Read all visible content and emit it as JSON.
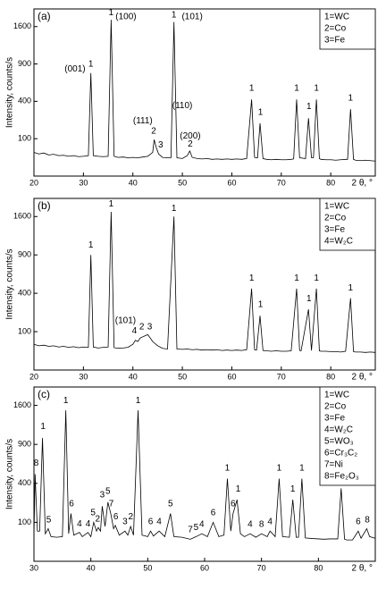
{
  "chart_data": [
    {
      "type": "line",
      "panel_label": "(a)",
      "y_label": "Intensity, counts/s",
      "x_label": "2 θ, °",
      "color": "#000000",
      "yscale": "sqrt",
      "xlim": [
        20,
        89
      ],
      "ylim": [
        0,
        2000
      ],
      "xticks": [
        20,
        30,
        40,
        50,
        60,
        70,
        80
      ],
      "yticks": [
        100,
        400,
        900,
        1600
      ],
      "legend": [
        "1=WC",
        "2=Co",
        "3=Fe"
      ],
      "legend_corner": "top-right",
      "x": [
        20,
        21,
        22,
        23,
        24,
        25,
        26,
        27,
        28,
        29,
        30,
        31,
        31.5,
        32,
        33,
        34,
        35,
        35.6,
        36.2,
        37,
        38,
        39,
        40,
        41,
        42,
        43,
        44,
        44.3,
        44.7,
        45.2,
        46,
        47,
        47.7,
        48.3,
        48.9,
        50,
        51,
        51.5,
        52,
        53,
        54,
        55,
        56,
        57,
        58,
        59,
        60,
        61,
        62,
        63,
        64,
        64.6,
        65.2,
        65.7,
        66.3,
        67,
        68,
        69,
        70,
        71,
        72,
        72.5,
        73.1,
        73.7,
        74.9,
        75.5,
        76.1,
        76.5,
        77.1,
        77.7,
        78,
        79,
        80,
        81,
        82,
        83,
        83.4,
        84,
        84.6,
        85,
        86,
        87,
        88,
        89
      ],
      "values": [
        40,
        35,
        38,
        32,
        34,
        30,
        31,
        28,
        30,
        27,
        28,
        30,
        760,
        30,
        28,
        27,
        28,
        1750,
        28,
        25,
        26,
        24,
        25,
        24,
        26,
        28,
        40,
        95,
        60,
        35,
        25,
        24,
        24,
        1700,
        24,
        22,
        30,
        45,
        25,
        22,
        21,
        22,
        20,
        21,
        20,
        21,
        20,
        21,
        20,
        22,
        420,
        25,
        24,
        200,
        22,
        20,
        19,
        20,
        19,
        19,
        20,
        21,
        420,
        24,
        22,
        240,
        24,
        24,
        420,
        22,
        20,
        19,
        19,
        18,
        19,
        20,
        20,
        320,
        20,
        18,
        17,
        18,
        17,
        16
      ],
      "annotations": [
        {
          "text": "(001)",
          "x": 28.3,
          "y": 780
        },
        {
          "text": "1",
          "x": 31.5,
          "y": 860
        },
        {
          "text": "1",
          "x": 35.6,
          "y": 1850
        },
        {
          "text": "(100)",
          "x": 38.6,
          "y": 1760
        },
        {
          "text": "1",
          "x": 48.3,
          "y": 1800
        },
        {
          "text": "(101)",
          "x": 52,
          "y": 1760
        },
        {
          "text": "(111)",
          "x": 42,
          "y": 200
        },
        {
          "text": "2",
          "x": 44.2,
          "y": 128
        },
        {
          "text": "3",
          "x": 45.6,
          "y": 58
        },
        {
          "text": "(110)",
          "x": 50,
          "y": 330
        },
        {
          "text": "(200)",
          "x": 51.6,
          "y": 100
        },
        {
          "text": "2",
          "x": 51.6,
          "y": 62
        },
        {
          "text": "1",
          "x": 64,
          "y": 520
        },
        {
          "text": "1",
          "x": 65.8,
          "y": 270
        },
        {
          "text": "1",
          "x": 73.1,
          "y": 520
        },
        {
          "text": "1",
          "x": 75.6,
          "y": 320
        },
        {
          "text": "1",
          "x": 77.1,
          "y": 520
        },
        {
          "text": "1",
          "x": 84,
          "y": 410
        }
      ]
    },
    {
      "type": "line",
      "panel_label": "(b)",
      "y_label": "Intensity, counts/s",
      "x_label": "2 θ, °",
      "color": "#000000",
      "yscale": "sqrt",
      "xlim": [
        20,
        89
      ],
      "ylim": [
        0,
        2000
      ],
      "xticks": [
        20,
        30,
        40,
        50,
        60,
        70,
        80
      ],
      "yticks": [
        100,
        400,
        900,
        1600
      ],
      "legend": [
        "1=WC",
        "2=Co",
        "3=Fe",
        "4=W₂C"
      ],
      "legend_corner": "top-right",
      "x": [
        20,
        21,
        22,
        23,
        24,
        25,
        26,
        27,
        28,
        29,
        30,
        31,
        31.5,
        32,
        33,
        34,
        35,
        35.6,
        36.2,
        37,
        38,
        39,
        40,
        40.5,
        41,
        41.5,
        42,
        42.5,
        43,
        43.5,
        44,
        45,
        46,
        47,
        48.3,
        48.9,
        50,
        51,
        52,
        53,
        54,
        55,
        56,
        57,
        58,
        59,
        60,
        61,
        62,
        63,
        64,
        64.6,
        65,
        65.7,
        66.3,
        67,
        68,
        69,
        70,
        71,
        72,
        73.1,
        73.7,
        74,
        75.5,
        76.1,
        77.1,
        77.7,
        78,
        79,
        80,
        81,
        82,
        83,
        84,
        84.6,
        85,
        86,
        87,
        88,
        89
      ],
      "values": [
        45,
        40,
        42,
        38,
        40,
        36,
        38,
        35,
        37,
        34,
        36,
        35,
        900,
        36,
        33,
        35,
        36,
        1700,
        34,
        32,
        33,
        35,
        45,
        60,
        55,
        70,
        75,
        80,
        85,
        70,
        55,
        40,
        32,
        30,
        1600,
        30,
        29,
        30,
        28,
        29,
        27,
        28,
        27,
        28,
        26,
        27,
        26,
        27,
        26,
        28,
        450,
        28,
        27,
        200,
        26,
        25,
        24,
        25,
        24,
        24,
        25,
        450,
        26,
        25,
        250,
        26,
        450,
        25,
        24,
        24,
        23,
        23,
        22,
        24,
        350,
        23,
        22,
        22,
        21,
        22,
        21
      ],
      "annotations": [
        {
          "text": "1",
          "x": 31.5,
          "y": 1020
        },
        {
          "text": "1",
          "x": 35.6,
          "y": 1820
        },
        {
          "text": "1",
          "x": 48.3,
          "y": 1720
        },
        {
          "text": "(101)",
          "x": 38.5,
          "y": 150
        },
        {
          "text": "4",
          "x": 40.3,
          "y": 92
        },
        {
          "text": "2",
          "x": 41.8,
          "y": 112
        },
        {
          "text": "3",
          "x": 43.4,
          "y": 112
        },
        {
          "text": "1",
          "x": 64,
          "y": 540
        },
        {
          "text": "1",
          "x": 65.8,
          "y": 270
        },
        {
          "text": "1",
          "x": 73.1,
          "y": 540
        },
        {
          "text": "1",
          "x": 75.6,
          "y": 320
        },
        {
          "text": "1",
          "x": 77.1,
          "y": 540
        },
        {
          "text": "1",
          "x": 84,
          "y": 430
        }
      ]
    },
    {
      "type": "line",
      "panel_label": "(c)",
      "y_label": "Intensity, counts/s",
      "x_label": "2 θ, °",
      "color": "#000000",
      "yscale": "sqrt",
      "xlim": [
        30,
        90
      ],
      "ylim": [
        0,
        2000
      ],
      "xticks": [
        30,
        40,
        50,
        60,
        70,
        80
      ],
      "yticks": [
        100,
        400,
        900,
        1600
      ],
      "legend": [
        "1=WC",
        "2=Co",
        "3=Fe",
        "4=W₂C",
        "5=WO₃",
        "6=Cr₃C₂",
        "7=Ni",
        "8=Fe₂O₃"
      ],
      "legend_corner": "top-right",
      "x": [
        30,
        30.2,
        30.6,
        31,
        31.5,
        32,
        32.5,
        33,
        34,
        35,
        35.6,
        36.1,
        36.5,
        37,
        38,
        38.5,
        39.5,
        40,
        40.5,
        41,
        41.3,
        41.7,
        42,
        42.5,
        43,
        43.5,
        44,
        44.3,
        45,
        46,
        46.5,
        47,
        47.5,
        48.3,
        49,
        50,
        50.5,
        51,
        52,
        53,
        54,
        54.6,
        56,
        57.5,
        58.5,
        59.5,
        60.5,
        61.5,
        62.5,
        63.4,
        64,
        64.6,
        65,
        65.7,
        66.3,
        67,
        68,
        69,
        70,
        71,
        71.5,
        72.4,
        73.1,
        73.7,
        74.9,
        75.5,
        76.1,
        76.5,
        77.1,
        77.7,
        79,
        80,
        81,
        82,
        83.4,
        84,
        84.6,
        85,
        86,
        87,
        87.5,
        88.5,
        89,
        90
      ],
      "values": [
        40,
        500,
        60,
        60,
        1000,
        50,
        70,
        40,
        38,
        40,
        1500,
        50,
        150,
        45,
        55,
        40,
        55,
        40,
        100,
        60,
        75,
        60,
        200,
        80,
        230,
        150,
        70,
        85,
        45,
        60,
        45,
        80,
        45,
        1500,
        45,
        40,
        60,
        42,
        60,
        40,
        150,
        40,
        38,
        32,
        40,
        50,
        40,
        100,
        40,
        45,
        450,
        60,
        150,
        250,
        50,
        40,
        50,
        38,
        50,
        40,
        60,
        40,
        450,
        40,
        38,
        250,
        38,
        38,
        450,
        36,
        34,
        33,
        32,
        33,
        33,
        350,
        32,
        30,
        30,
        60,
        35,
        70,
        40,
        35
      ],
      "annotations": [
        {
          "text": "8",
          "x": 30.4,
          "y": 600
        },
        {
          "text": "1",
          "x": 31.6,
          "y": 1150
        },
        {
          "text": "5",
          "x": 32.6,
          "y": 100
        },
        {
          "text": "1",
          "x": 35.6,
          "y": 1650
        },
        {
          "text": "6",
          "x": 36.6,
          "y": 200
        },
        {
          "text": "4",
          "x": 38,
          "y": 80
        },
        {
          "text": "4",
          "x": 39.5,
          "y": 80
        },
        {
          "text": "5",
          "x": 40.4,
          "y": 140
        },
        {
          "text": "2",
          "x": 41.2,
          "y": 105
        },
        {
          "text": "3",
          "x": 42,
          "y": 270
        },
        {
          "text": "5",
          "x": 43,
          "y": 300
        },
        {
          "text": "7",
          "x": 43.6,
          "y": 200
        },
        {
          "text": "6",
          "x": 44.4,
          "y": 115
        },
        {
          "text": "3",
          "x": 46,
          "y": 90
        },
        {
          "text": "2",
          "x": 47,
          "y": 115
        },
        {
          "text": "1",
          "x": 48.3,
          "y": 1650
        },
        {
          "text": "6",
          "x": 50.5,
          "y": 90
        },
        {
          "text": "4",
          "x": 52,
          "y": 90
        },
        {
          "text": "5",
          "x": 54,
          "y": 200
        },
        {
          "text": "7",
          "x": 57.5,
          "y": 55
        },
        {
          "text": "5",
          "x": 58.5,
          "y": 65
        },
        {
          "text": "4",
          "x": 59.5,
          "y": 78
        },
        {
          "text": "6",
          "x": 61.5,
          "y": 140
        },
        {
          "text": "1",
          "x": 64,
          "y": 540
        },
        {
          "text": "6",
          "x": 65,
          "y": 200
        },
        {
          "text": "1",
          "x": 65.9,
          "y": 320
        },
        {
          "text": "4",
          "x": 68,
          "y": 78
        },
        {
          "text": "8",
          "x": 70,
          "y": 78
        },
        {
          "text": "4",
          "x": 71.5,
          "y": 90
        },
        {
          "text": "1",
          "x": 73.1,
          "y": 540
        },
        {
          "text": "1",
          "x": 75.5,
          "y": 320
        },
        {
          "text": "1",
          "x": 77.1,
          "y": 540
        },
        {
          "text": "1",
          "x": 84,
          "y": 430
        },
        {
          "text": "6",
          "x": 87,
          "y": 90
        },
        {
          "text": "8",
          "x": 88.6,
          "y": 100
        }
      ]
    }
  ]
}
